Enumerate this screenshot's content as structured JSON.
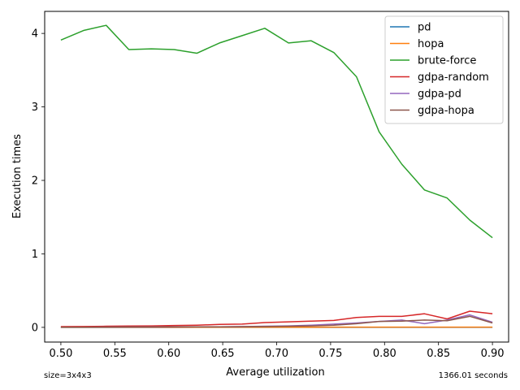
{
  "chart_data": {
    "type": "line",
    "xlabel": "Average utilization",
    "ylabel": "Execution times",
    "xlim": [
      0.485,
      0.915
    ],
    "ylim": [
      -0.2,
      4.3
    ],
    "xticks": [
      "0.50",
      "0.55",
      "0.60",
      "0.65",
      "0.70",
      "0.75",
      "0.80",
      "0.85",
      "0.90"
    ],
    "yticks": [
      "0",
      "1",
      "2",
      "3",
      "4"
    ],
    "grid": false,
    "legend_position": "top-right",
    "x": [
      0.5,
      0.521,
      0.542,
      0.563,
      0.584,
      0.605,
      0.626,
      0.647,
      0.668,
      0.689,
      0.711,
      0.732,
      0.753,
      0.774,
      0.795,
      0.816,
      0.837,
      0.858,
      0.879,
      0.9
    ],
    "series": [
      {
        "name": "pd",
        "color": "#1f77b4",
        "values": [
          0,
          0,
          0,
          0,
          0,
          0,
          0,
          0,
          0,
          0,
          0,
          0,
          0,
          0,
          0,
          0,
          0,
          0,
          0,
          0
        ]
      },
      {
        "name": "hopa",
        "color": "#ff7f0e",
        "values": [
          0.001,
          0.001,
          0.001,
          0.001,
          0.001,
          0.001,
          0.002,
          0.002,
          0.002,
          0.002,
          0.002,
          0.002,
          0.003,
          0.003,
          0.003,
          0.003,
          0.003,
          0.003,
          0.003,
          0.003
        ]
      },
      {
        "name": "brute-force",
        "color": "#2ca02c",
        "values": [
          3.91,
          4.04,
          4.11,
          3.78,
          3.79,
          3.78,
          3.73,
          3.87,
          3.97,
          4.07,
          3.87,
          3.9,
          3.74,
          3.41,
          2.66,
          2.22,
          1.87,
          1.76,
          1.46,
          1.22
        ]
      },
      {
        "name": "gdpa-random",
        "color": "#d62728",
        "values": [
          0.01,
          0.012,
          0.015,
          0.018,
          0.02,
          0.025,
          0.03,
          0.04,
          0.045,
          0.065,
          0.075,
          0.085,
          0.095,
          0.135,
          0.15,
          0.15,
          0.185,
          0.115,
          0.22,
          0.185
        ]
      },
      {
        "name": "gdpa-pd",
        "color": "#9467bd",
        "values": [
          0.002,
          0.002,
          0.003,
          0.004,
          0.005,
          0.006,
          0.007,
          0.008,
          0.01,
          0.015,
          0.02,
          0.03,
          0.045,
          0.06,
          0.08,
          0.1,
          0.05,
          0.1,
          0.17,
          0.07
        ]
      },
      {
        "name": "gdpa-hopa",
        "color": "#8c564b",
        "values": [
          0.002,
          0.002,
          0.003,
          0.004,
          0.005,
          0.006,
          0.007,
          0.008,
          0.01,
          0.012,
          0.015,
          0.02,
          0.03,
          0.05,
          0.08,
          0.085,
          0.1,
          0.09,
          0.15,
          0.06
        ]
      }
    ],
    "annotations": {
      "bottom_left": "size=3x4x3",
      "bottom_right": "1366.01 seconds"
    }
  }
}
